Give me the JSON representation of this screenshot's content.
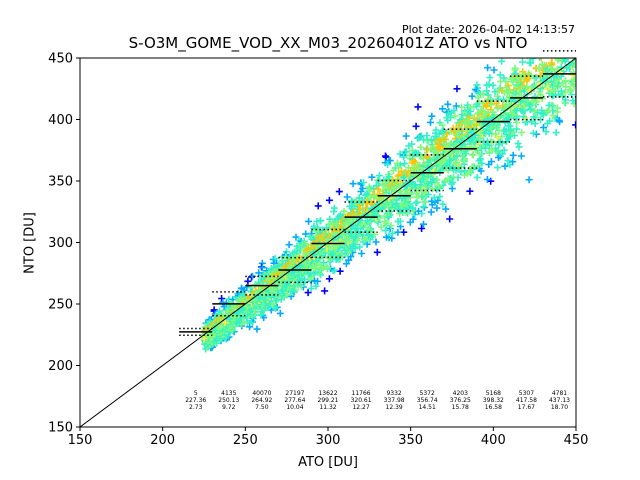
{
  "header": {
    "plot_date": "Plot date: 2026-04-02 14:13:57",
    "title": "S-O3M_GOME_VOD_XX_M03_20260401Z ATO vs NTO"
  },
  "chart_data": {
    "type": "scatter",
    "title": "S-O3M_GOME_VOD_XX_M03_20260401Z ATO vs NTO",
    "xlabel": "ATO [DU]",
    "ylabel": "NTO [DU]",
    "xlim": [
      150,
      450
    ],
    "ylim": [
      150,
      450
    ],
    "xticks": [
      150,
      200,
      250,
      300,
      350,
      400,
      450
    ],
    "yticks": [
      150,
      200,
      250,
      300,
      350,
      400,
      450
    ],
    "grid": false,
    "one_to_one_line": true,
    "density_colors": {
      "low": "#0000ff",
      "low_mid": "#00aaff",
      "mid": "#33f0c8",
      "mid_high": "#7dfa7d",
      "high": "#ffc400",
      "peak": "#ffe94d"
    },
    "bins": [
      {
        "count": "5",
        "mean": "227.36",
        "std": "2.73",
        "x_start": 210,
        "x_end": 230,
        "mean_value": 227.36,
        "std_value": 2.73
      },
      {
        "count": "4135",
        "mean": "250.13",
        "std": "9.72",
        "x_start": 230,
        "x_end": 250,
        "mean_value": 250.13,
        "std_value": 9.72
      },
      {
        "count": "40070",
        "mean": "264.92",
        "std": "7.50",
        "x_start": 250,
        "x_end": 270,
        "mean_value": 264.92,
        "std_value": 7.5
      },
      {
        "count": "27197",
        "mean": "277.64",
        "std": "10.04",
        "x_start": 270,
        "x_end": 290,
        "mean_value": 277.64,
        "std_value": 10.04
      },
      {
        "count": "13622",
        "mean": "299.21",
        "std": "11.32",
        "x_start": 290,
        "x_end": 310,
        "mean_value": 299.21,
        "std_value": 11.32
      },
      {
        "count": "11766",
        "mean": "320.61",
        "std": "12.27",
        "x_start": 310,
        "x_end": 330,
        "mean_value": 320.61,
        "std_value": 12.27
      },
      {
        "count": "9332",
        "mean": "337.98",
        "std": "12.39",
        "x_start": 330,
        "x_end": 350,
        "mean_value": 337.98,
        "std_value": 12.39
      },
      {
        "count": "5372",
        "mean": "356.74",
        "std": "14.51",
        "x_start": 350,
        "x_end": 370,
        "mean_value": 356.74,
        "std_value": 14.51
      },
      {
        "count": "4203",
        "mean": "376.25",
        "std": "15.78",
        "x_start": 370,
        "x_end": 390,
        "mean_value": 376.25,
        "std_value": 15.78
      },
      {
        "count": "5168",
        "mean": "398.32",
        "std": "16.58",
        "x_start": 390,
        "x_end": 410,
        "mean_value": 398.32,
        "std_value": 16.58
      },
      {
        "count": "5307",
        "mean": "417.58",
        "std": "17.67",
        "x_start": 410,
        "x_end": 430,
        "mean_value": 417.58,
        "std_value": 17.67
      },
      {
        "count": "4781",
        "mean": "437.13",
        "std": "18.70",
        "x_start": 430,
        "x_end": 450,
        "mean_value": 437.13,
        "std_value": 18.7
      }
    ]
  }
}
